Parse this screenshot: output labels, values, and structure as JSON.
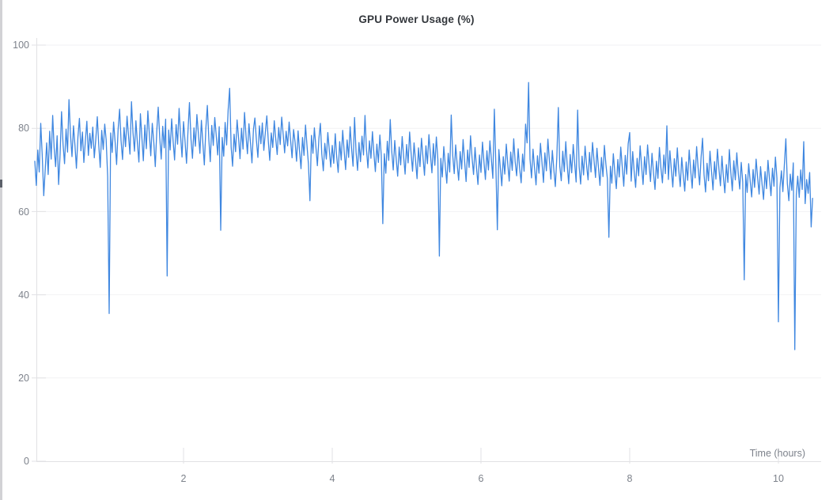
{
  "title": "GPU Power Usage (%)",
  "axes": {
    "x_label": "Time (hours)",
    "x_ticks": [
      "2",
      "4",
      "6",
      "8",
      "10"
    ],
    "y_ticks": [
      "100",
      "80",
      "60",
      "40",
      "20",
      "0"
    ]
  },
  "colors": {
    "line": "#3F87E0",
    "axis": "#e1e1e4",
    "grid": "#f2f2f4",
    "tick": "#e1e1e4",
    "tick_label": "#7d828b",
    "title": "#33373c"
  },
  "chart_data": {
    "type": "line",
    "title": "GPU Power Usage (%)",
    "xlabel": "Time (hours)",
    "ylabel": "",
    "xlim": [
      0,
      10.55
    ],
    "ylim": [
      0,
      100
    ],
    "x_ticks": [
      2,
      4,
      6,
      8,
      10
    ],
    "y_ticks": [
      0,
      20,
      40,
      60,
      80,
      100
    ],
    "grid": "horizontal-only",
    "legend": "none",
    "x_start": 0,
    "x_step": 0.02,
    "series": [
      {
        "name": "GPU Power Usage (%)",
        "values": [
          72.1,
          66.3,
          74.8,
          69.5,
          81.2,
          73.4,
          63.8,
          70.2,
          76.5,
          68.9,
          79.3,
          72.6,
          83.1,
          75.4,
          70.8,
          78.2,
          66.5,
          73.9,
          84.0,
          76.2,
          71.5,
          79.8,
          74.3,
          86.9,
          78.5,
          73.2,
          80.6,
          75.8,
          70.4,
          77.9,
          82.4,
          74.6,
          79.1,
          71.8,
          76.9,
          81.7,
          73.5,
          78.8,
          75.2,
          80.3,
          72.9,
          77.4,
          82.8,
          76.1,
          70.6,
          79.5,
          74.9,
          81.0,
          77.2,
          68.4,
          35.5,
          78.9,
          74.2,
          81.5,
          76.8,
          71.3,
          79.7,
          84.6,
          77.1,
          72.5,
          80.2,
          75.6,
          82.9,
          78.3,
          73.8,
          86.4,
          79.0,
          74.5,
          81.8,
          76.4,
          71.9,
          83.5,
          77.6,
          72.2,
          80.8,
          75.1,
          84.2,
          78.6,
          73.4,
          81.2,
          76.7,
          70.8,
          79.4,
          85.1,
          77.8,
          72.6,
          80.5,
          75.3,
          82.2,
          44.5,
          79.6,
          74.8,
          82.3,
          77.0,
          72.4,
          80.9,
          76.2,
          84.8,
          78.4,
          73.1,
          81.6,
          76.9,
          71.6,
          79.2,
          86.2,
          77.5,
          72.8,
          80.1,
          75.7,
          83.3,
          78.7,
          74.0,
          81.9,
          76.5,
          71.2,
          79.9,
          85.5,
          77.3,
          72.0,
          80.7,
          75.9,
          82.6,
          78.1,
          73.6,
          80.4,
          55.5,
          77.8,
          73.3,
          81.4,
          76.0,
          84.4,
          89.6,
          75.5,
          70.9,
          78.6,
          74.4,
          82.0,
          77.7,
          72.7,
          80.0,
          75.0,
          83.8,
          78.2,
          73.9,
          81.1,
          76.6,
          71.7,
          79.8,
          82.5,
          77.2,
          73.0,
          80.6,
          76.3,
          81.3,
          74.7,
          79.0,
          83.0,
          76.8,
          72.3,
          78.9,
          75.4,
          81.8,
          77.4,
          73.7,
          80.2,
          76.1,
          82.7,
          78.5,
          74.1,
          79.3,
          75.8,
          81.5,
          77.0,
          72.9,
          79.7,
          76.7,
          72.1,
          79.4,
          74.6,
          70.3,
          77.8,
          73.5,
          80.8,
          76.0,
          71.4,
          62.6,
          78.3,
          74.0,
          80.1,
          75.6,
          71.0,
          77.5,
          81.2,
          73.8,
          69.8,
          76.4,
          72.6,
          79.0,
          74.9,
          70.7,
          75.9,
          71.6,
          78.7,
          73.2,
          69.4,
          76.8,
          72.4,
          79.5,
          74.7,
          70.1,
          77.2,
          73.0,
          80.4,
          75.2,
          70.9,
          82.6,
          74.3,
          69.9,
          76.6,
          72.0,
          78.1,
          73.6,
          83.1,
          75.0,
          70.5,
          77.0,
          72.8,
          79.2,
          74.1,
          69.6,
          76.2,
          71.8,
          78.4,
          73.4,
          57.1,
          73.9,
          69.2,
          76.9,
          72.3,
          82.1,
          74.5,
          70.0,
          77.1,
          72.7,
          68.5,
          75.5,
          71.2,
          78.0,
          73.3,
          69.0,
          76.1,
          71.7,
          79.1,
          74.2,
          69.7,
          76.5,
          72.2,
          67.9,
          75.3,
          70.8,
          77.6,
          73.1,
          68.7,
          75.8,
          71.5,
          78.5,
          73.7,
          69.3,
          76.3,
          71.1,
          77.9,
          72.5,
          49.3,
          72.8,
          68.3,
          75.6,
          71.0,
          66.8,
          74.0,
          69.5,
          83.2,
          73.5,
          69.1,
          76.0,
          71.4,
          67.5,
          74.4,
          70.2,
          77.3,
          72.1,
          67.2,
          74.8,
          70.6,
          78.2,
          73.0,
          68.9,
          75.4,
          70.4,
          66.5,
          73.6,
          69.4,
          76.7,
          71.9,
          67.7,
          74.6,
          70.0,
          77.0,
          72.4,
          68.0,
          84.6,
          71.3,
          55.6,
          74.9,
          70.7,
          66.2,
          73.2,
          69.0,
          76.2,
          71.6,
          67.3,
          74.3,
          69.9,
          77.5,
          72.0,
          68.6,
          75.1,
          70.3,
          66.9,
          73.8,
          69.7,
          81.0,
          76.5,
          91.0,
          72.6,
          68.1,
          75.0,
          70.5,
          66.4,
          73.4,
          69.2,
          76.4,
          71.8,
          67.0,
          74.1,
          69.8,
          77.4,
          72.2,
          67.8,
          74.7,
          70.1,
          66.0,
          73.1,
          85.0,
          70.9,
          67.4,
          74.5,
          69.6,
          76.8,
          71.2,
          66.7,
          73.7,
          69.3,
          76.1,
          71.7,
          67.1,
          84.4,
          70.8,
          66.6,
          73.3,
          68.8,
          75.7,
          71.1,
          67.6,
          74.2,
          69.5,
          76.6,
          72.3,
          68.2,
          75.2,
          70.6,
          66.3,
          73.0,
          68.4,
          75.9,
          71.4,
          67.9,
          53.8,
          70.9,
          66.8,
          73.9,
          69.4,
          65.5,
          72.5,
          68.3,
          75.5,
          70.7,
          66.1,
          73.5,
          69.0,
          76.3,
          79.0,
          67.3,
          74.4,
          69.8,
          65.8,
          72.8,
          68.6,
          75.8,
          71.0,
          66.5,
          73.2,
          68.9,
          76.0,
          71.5,
          67.2,
          74.0,
          69.3,
          65.3,
          72.1,
          68.0,
          75.4,
          70.4,
          66.9,
          73.6,
          69.1,
          80.6,
          67.7,
          74.6,
          70.2,
          65.9,
          72.7,
          68.5,
          75.3,
          70.0,
          66.0,
          73.0,
          68.7,
          64.9,
          71.9,
          67.5,
          74.8,
          69.9,
          65.6,
          72.4,
          68.1,
          75.6,
          70.5,
          66.4,
          72.9,
          77.6,
          68.8,
          64.7,
          71.6,
          67.4,
          74.5,
          69.7,
          65.2,
          72.0,
          67.8,
          75.0,
          70.3,
          66.2,
          73.3,
          68.4,
          64.5,
          71.3,
          67.0,
          74.9,
          69.5,
          65.0,
          72.2,
          67.6,
          74.1,
          69.2,
          65.4,
          71.8,
          67.1,
          43.6,
          68.9,
          64.6,
          71.5,
          67.3,
          63.5,
          70.1,
          65.8,
          72.6,
          68.2,
          64.2,
          70.8,
          66.6,
          62.9,
          69.6,
          65.5,
          72.3,
          67.9,
          63.8,
          70.4,
          66.1,
          73.1,
          68.0,
          33.5,
          65.7,
          69.8,
          64.8,
          71.2,
          77.5,
          66.7,
          62.6,
          69.0,
          65.1,
          71.7,
          26.8,
          64.0,
          68.5,
          63.4,
          70.0,
          65.3,
          76.8,
          61.9,
          67.7,
          64.4,
          69.4,
          56.3,
          63.2
        ]
      }
    ]
  }
}
